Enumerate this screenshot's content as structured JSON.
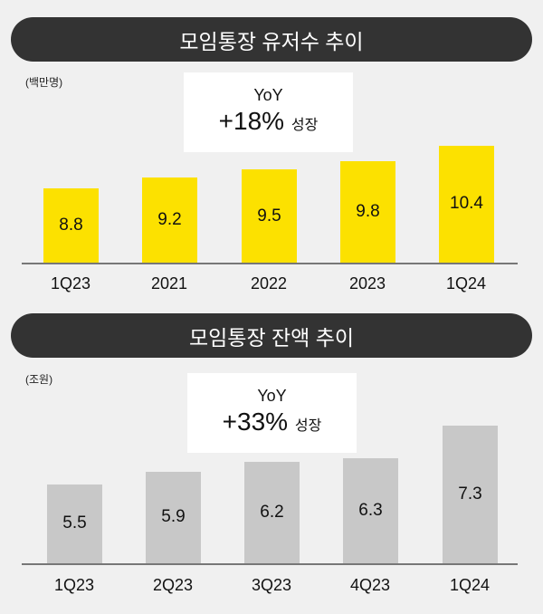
{
  "chart_data": [
    {
      "type": "bar",
      "title": "모임통장 유저수 추이",
      "unit": "(백만명)",
      "callout": {
        "label": "YoY",
        "value": "+18%",
        "suffix": "성장"
      },
      "categories": [
        "1Q23",
        "2021",
        "2022",
        "2023",
        "1Q24"
      ],
      "values": [
        8.8,
        9.2,
        9.5,
        9.8,
        10.4
      ],
      "value_labels": [
        "8.8",
        "9.2",
        "9.5",
        "9.8",
        "10.4"
      ],
      "bar_color": "#fce100"
    },
    {
      "type": "bar",
      "title": "모임통장 잔액 추이",
      "unit": "(조원)",
      "callout": {
        "label": "YoY",
        "value": "+33%",
        "suffix": "성장"
      },
      "categories": [
        "1Q23",
        "2Q23",
        "3Q23",
        "4Q23",
        "1Q24"
      ],
      "values": [
        5.5,
        5.9,
        6.2,
        6.3,
        7.3
      ],
      "value_labels": [
        "5.5",
        "5.9",
        "6.2",
        "6.3",
        "7.3"
      ],
      "bar_color": "#c8c8c8"
    }
  ]
}
